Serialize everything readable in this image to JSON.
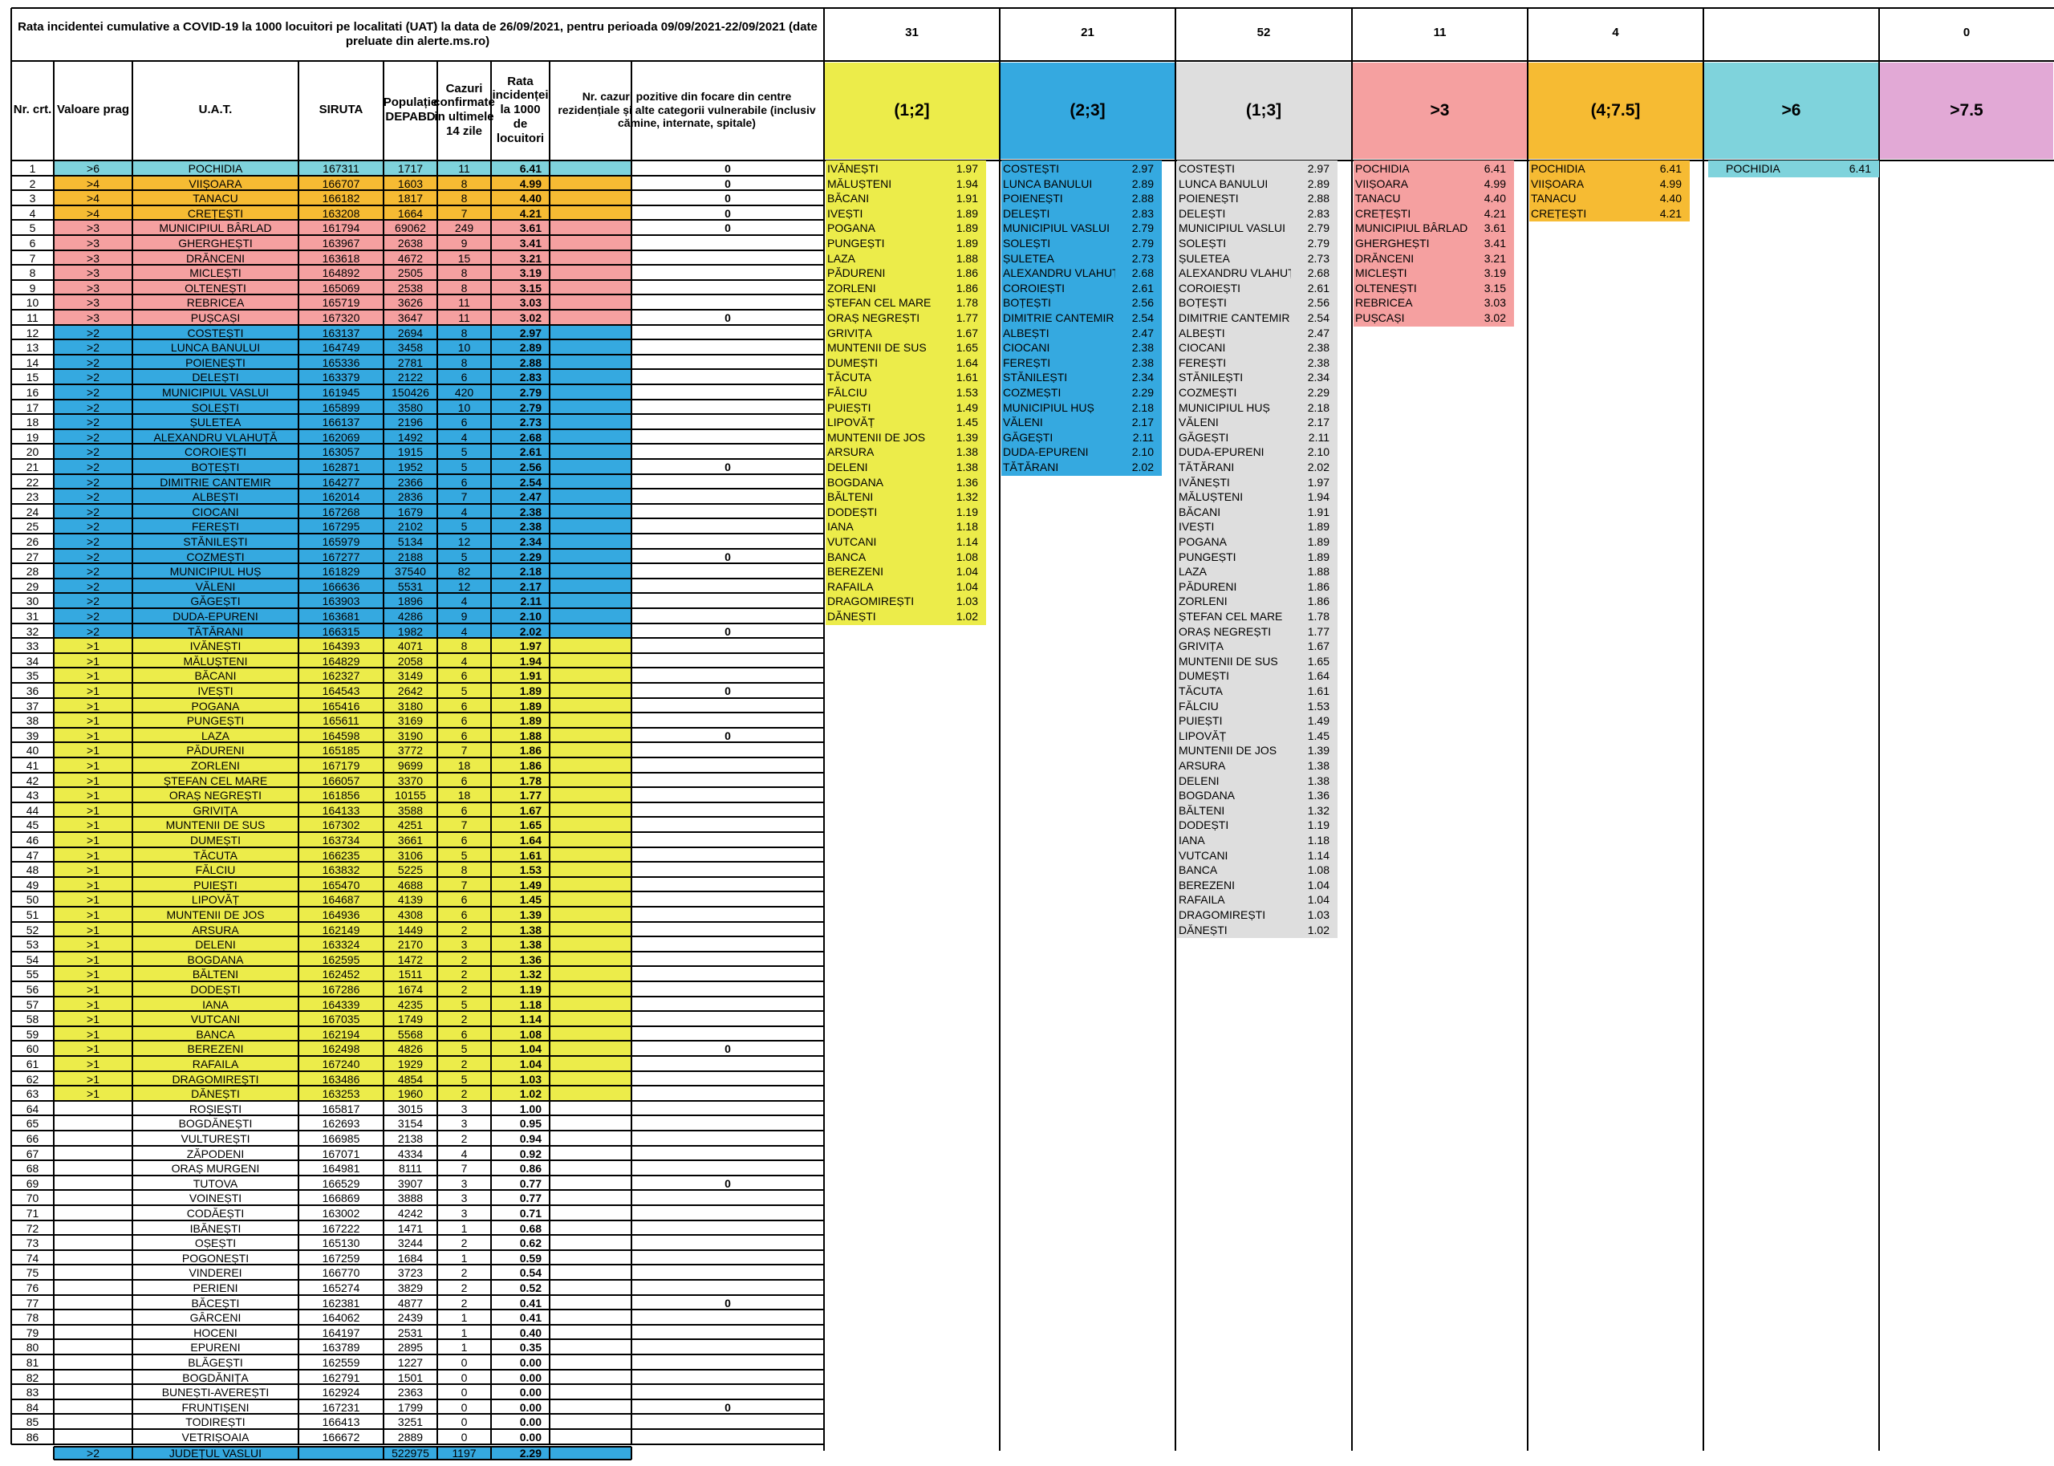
{
  "colors": {
    "c6": "#7fd3dc",
    "c4": "#f6bb33",
    "c3": "#f5a0a0",
    "c2": "#35a9e0",
    "c1": "#ecec4a",
    "c13": "#dedede",
    "c75": "#e2a9d6"
  },
  "header": {
    "title": "Rata incidentei cumulative a COVID-19 la 1000 locuitori pe localitati (UAT) la data de 26/09/2021, pentru perioada 09/09/2021-22/09/2021 (date preluate din alerte.ms.ro)",
    "col_nr": "Nr. crt.",
    "col_prag": "Valoare prag",
    "col_uat": "U.A.T.",
    "col_siruta": "SIRUTA",
    "col_pop": "Populație DEPABD",
    "col_cazuri": "Cazuri confirmate in ultimele 14 zile",
    "col_rata": "Rata incidenței la 1000 de locuitori",
    "col_focare": "Nr. cazuri pozitive din focare din centre rezidențiale și alte categorii vulnerabile (inclusiv cămine, internate, spitale)"
  },
  "rows": [
    [
      "1",
      ">6",
      "POCHIDIA",
      "167311",
      "1717",
      "11",
      "6.41",
      "0"
    ],
    [
      "2",
      ">4",
      "VIIȘOARA",
      "166707",
      "1603",
      "8",
      "4.99",
      "0"
    ],
    [
      "3",
      ">4",
      "TANACU",
      "166182",
      "1817",
      "8",
      "4.40",
      "0"
    ],
    [
      "4",
      ">4",
      "CREȚEȘTI",
      "163208",
      "1664",
      "7",
      "4.21",
      "0"
    ],
    [
      "5",
      ">3",
      "MUNICIPIUL BÂRLAD",
      "161794",
      "69062",
      "249",
      "3.61",
      "0"
    ],
    [
      "6",
      ">3",
      "GHERGHEȘTI",
      "163967",
      "2638",
      "9",
      "3.41",
      ""
    ],
    [
      "7",
      ">3",
      "DRĂNCENI",
      "163618",
      "4672",
      "15",
      "3.21",
      ""
    ],
    [
      "8",
      ">3",
      "MICLEȘTI",
      "164892",
      "2505",
      "8",
      "3.19",
      ""
    ],
    [
      "9",
      ">3",
      "OLTENEȘTI",
      "165069",
      "2538",
      "8",
      "3.15",
      ""
    ],
    [
      "10",
      ">3",
      "REBRICEA",
      "165719",
      "3626",
      "11",
      "3.03",
      ""
    ],
    [
      "11",
      ">3",
      "PUȘCAȘI",
      "167320",
      "3647",
      "11",
      "3.02",
      "0"
    ],
    [
      "12",
      ">2",
      "COSTEȘTI",
      "163137",
      "2694",
      "8",
      "2.97",
      ""
    ],
    [
      "13",
      ">2",
      "LUNCA BANULUI",
      "164749",
      "3458",
      "10",
      "2.89",
      ""
    ],
    [
      "14",
      ">2",
      "POIENEȘTI",
      "165336",
      "2781",
      "8",
      "2.88",
      ""
    ],
    [
      "15",
      ">2",
      "DELEȘTI",
      "163379",
      "2122",
      "6",
      "2.83",
      ""
    ],
    [
      "16",
      ">2",
      "MUNICIPIUL VASLUI",
      "161945",
      "150426",
      "420",
      "2.79",
      ""
    ],
    [
      "17",
      ">2",
      "SOLEȘTI",
      "165899",
      "3580",
      "10",
      "2.79",
      ""
    ],
    [
      "18",
      ">2",
      "ȘULETEA",
      "166137",
      "2196",
      "6",
      "2.73",
      ""
    ],
    [
      "19",
      ">2",
      "ALEXANDRU VLAHUȚĂ",
      "162069",
      "1492",
      "4",
      "2.68",
      ""
    ],
    [
      "20",
      ">2",
      "COROIEȘTI",
      "163057",
      "1915",
      "5",
      "2.61",
      ""
    ],
    [
      "21",
      ">2",
      "BOȚEȘTI",
      "162871",
      "1952",
      "5",
      "2.56",
      "0"
    ],
    [
      "22",
      ">2",
      "DIMITRIE CANTEMIR",
      "164277",
      "2366",
      "6",
      "2.54",
      ""
    ],
    [
      "23",
      ">2",
      "ALBEȘTI",
      "162014",
      "2836",
      "7",
      "2.47",
      ""
    ],
    [
      "24",
      ">2",
      "CIOCANI",
      "167268",
      "1679",
      "4",
      "2.38",
      ""
    ],
    [
      "25",
      ">2",
      "FEREȘTI",
      "167295",
      "2102",
      "5",
      "2.38",
      ""
    ],
    [
      "26",
      ">2",
      "STĂNILEȘTI",
      "165979",
      "5134",
      "12",
      "2.34",
      ""
    ],
    [
      "27",
      ">2",
      "COZMEȘTI",
      "167277",
      "2188",
      "5",
      "2.29",
      "0"
    ],
    [
      "28",
      ">2",
      "MUNICIPIUL HUȘ",
      "161829",
      "37540",
      "82",
      "2.18",
      ""
    ],
    [
      "29",
      ">2",
      "VĂLENI",
      "166636",
      "5531",
      "12",
      "2.17",
      ""
    ],
    [
      "30",
      ">2",
      "GĂGEȘTI",
      "163903",
      "1896",
      "4",
      "2.11",
      ""
    ],
    [
      "31",
      ">2",
      "DUDA-EPURENI",
      "163681",
      "4286",
      "9",
      "2.10",
      ""
    ],
    [
      "32",
      ">2",
      "TĂTĂRANI",
      "166315",
      "1982",
      "4",
      "2.02",
      "0"
    ],
    [
      "33",
      ">1",
      "IVĂNEȘTI",
      "164393",
      "4071",
      "8",
      "1.97",
      ""
    ],
    [
      "34",
      ">1",
      "MĂLUȘTENI",
      "164829",
      "2058",
      "4",
      "1.94",
      ""
    ],
    [
      "35",
      ">1",
      "BĂCANI",
      "162327",
      "3149",
      "6",
      "1.91",
      ""
    ],
    [
      "36",
      ">1",
      "IVEȘTI",
      "164543",
      "2642",
      "5",
      "1.89",
      "0"
    ],
    [
      "37",
      ">1",
      "POGANA",
      "165416",
      "3180",
      "6",
      "1.89",
      ""
    ],
    [
      "38",
      ">1",
      "PUNGEȘTI",
      "165611",
      "3169",
      "6",
      "1.89",
      ""
    ],
    [
      "39",
      ">1",
      "LAZA",
      "164598",
      "3190",
      "6",
      "1.88",
      "0"
    ],
    [
      "40",
      ">1",
      "PĂDURENI",
      "165185",
      "3772",
      "7",
      "1.86",
      ""
    ],
    [
      "41",
      ">1",
      "ZORLENI",
      "167179",
      "9699",
      "18",
      "1.86",
      ""
    ],
    [
      "42",
      ">1",
      "ȘTEFAN CEL MARE",
      "166057",
      "3370",
      "6",
      "1.78",
      ""
    ],
    [
      "43",
      ">1",
      "ORAȘ NEGREȘTI",
      "161856",
      "10155",
      "18",
      "1.77",
      ""
    ],
    [
      "44",
      ">1",
      "GRIVIȚA",
      "164133",
      "3588",
      "6",
      "1.67",
      ""
    ],
    [
      "45",
      ">1",
      "MUNTENII DE SUS",
      "167302",
      "4251",
      "7",
      "1.65",
      ""
    ],
    [
      "46",
      ">1",
      "DUMEȘTI",
      "163734",
      "3661",
      "6",
      "1.64",
      ""
    ],
    [
      "47",
      ">1",
      "TĂCUTA",
      "166235",
      "3106",
      "5",
      "1.61",
      ""
    ],
    [
      "48",
      ">1",
      "FĂLCIU",
      "163832",
      "5225",
      "8",
      "1.53",
      ""
    ],
    [
      "49",
      ">1",
      "PUIEȘTI",
      "165470",
      "4688",
      "7",
      "1.49",
      ""
    ],
    [
      "50",
      ">1",
      "LIPOVĂȚ",
      "164687",
      "4139",
      "6",
      "1.45",
      ""
    ],
    [
      "51",
      ">1",
      "MUNTENII DE JOS",
      "164936",
      "4308",
      "6",
      "1.39",
      ""
    ],
    [
      "52",
      ">1",
      "ARSURA",
      "162149",
      "1449",
      "2",
      "1.38",
      ""
    ],
    [
      "53",
      ">1",
      "DELENI",
      "163324",
      "2170",
      "3",
      "1.38",
      ""
    ],
    [
      "54",
      ">1",
      "BOGDANA",
      "162595",
      "1472",
      "2",
      "1.36",
      ""
    ],
    [
      "55",
      ">1",
      "BĂLTENI",
      "162452",
      "1511",
      "2",
      "1.32",
      ""
    ],
    [
      "56",
      ">1",
      "DODEȘTI",
      "167286",
      "1674",
      "2",
      "1.19",
      ""
    ],
    [
      "57",
      ">1",
      "IANA",
      "164339",
      "4235",
      "5",
      "1.18",
      ""
    ],
    [
      "58",
      ">1",
      "VUTCANI",
      "167035",
      "1749",
      "2",
      "1.14",
      ""
    ],
    [
      "59",
      ">1",
      "BANCA",
      "162194",
      "5568",
      "6",
      "1.08",
      ""
    ],
    [
      "60",
      ">1",
      "BEREZENI",
      "162498",
      "4826",
      "5",
      "1.04",
      "0"
    ],
    [
      "61",
      ">1",
      "RAFAILA",
      "167240",
      "1929",
      "2",
      "1.04",
      ""
    ],
    [
      "62",
      ">1",
      "DRAGOMIREȘTI",
      "163486",
      "4854",
      "5",
      "1.03",
      ""
    ],
    [
      "63",
      ">1",
      "DĂNEȘTI",
      "163253",
      "1960",
      "2",
      "1.02",
      ""
    ],
    [
      "64",
      "",
      "ROȘIEȘTI",
      "165817",
      "3015",
      "3",
      "1.00",
      ""
    ],
    [
      "65",
      "",
      "BOGDĂNEȘTI",
      "162693",
      "3154",
      "3",
      "0.95",
      ""
    ],
    [
      "66",
      "",
      "VULTUREȘTI",
      "166985",
      "2138",
      "2",
      "0.94",
      ""
    ],
    [
      "67",
      "",
      "ZĂPODENI",
      "167071",
      "4334",
      "4",
      "0.92",
      ""
    ],
    [
      "68",
      "",
      "ORAȘ MURGENI",
      "164981",
      "8111",
      "7",
      "0.86",
      ""
    ],
    [
      "69",
      "",
      "TUTOVA",
      "166529",
      "3907",
      "3",
      "0.77",
      "0"
    ],
    [
      "70",
      "",
      "VOINEȘTI",
      "166869",
      "3888",
      "3",
      "0.77",
      ""
    ],
    [
      "71",
      "",
      "CODĂEȘTI",
      "163002",
      "4242",
      "3",
      "0.71",
      ""
    ],
    [
      "72",
      "",
      "IBĂNEȘTI",
      "167222",
      "1471",
      "1",
      "0.68",
      ""
    ],
    [
      "73",
      "",
      "OȘEȘTI",
      "165130",
      "3244",
      "2",
      "0.62",
      ""
    ],
    [
      "74",
      "",
      "POGONEȘTI",
      "167259",
      "1684",
      "1",
      "0.59",
      ""
    ],
    [
      "75",
      "",
      "VINDEREI",
      "166770",
      "3723",
      "2",
      "0.54",
      ""
    ],
    [
      "76",
      "",
      "PERIENI",
      "165274",
      "3829",
      "2",
      "0.52",
      ""
    ],
    [
      "77",
      "",
      "BĂCEȘTI",
      "162381",
      "4877",
      "2",
      "0.41",
      "0"
    ],
    [
      "78",
      "",
      "GÂRCENI",
      "164062",
      "2439",
      "1",
      "0.41",
      ""
    ],
    [
      "79",
      "",
      "HOCENI",
      "164197",
      "2531",
      "1",
      "0.40",
      ""
    ],
    [
      "80",
      "",
      "EPURENI",
      "163789",
      "2895",
      "1",
      "0.35",
      ""
    ],
    [
      "81",
      "",
      "BLĂGEȘTI",
      "162559",
      "1227",
      "0",
      "0.00",
      ""
    ],
    [
      "82",
      "",
      "BOGDĂNIȚA",
      "162791",
      "1501",
      "0",
      "0.00",
      ""
    ],
    [
      "83",
      "",
      "BUNEȘTI-AVEREȘTI",
      "162924",
      "2363",
      "0",
      "0.00",
      ""
    ],
    [
      "84",
      "",
      "FRUNTIȘENI",
      "167231",
      "1799",
      "0",
      "0.00",
      "0"
    ],
    [
      "85",
      "",
      "TODIREȘTI",
      "166413",
      "3251",
      "0",
      "0.00",
      ""
    ],
    [
      "86",
      "",
      "VETRIȘOAIA",
      "166672",
      "2889",
      "0",
      "0.00",
      ""
    ]
  ],
  "total": {
    "prag": ">2",
    "uat": "JUDEȚUL VASLUI",
    "pop": "522975",
    "cazuri": "1197",
    "rata": "2.29"
  },
  "groups": [
    {
      "count": "31",
      "range": "(1;2]",
      "color": "c1",
      "items": [
        [
          "IVĂNEȘTI",
          "1.97"
        ],
        [
          "MĂLUȘTENI",
          "1.94"
        ],
        [
          "BĂCANI",
          "1.91"
        ],
        [
          "IVEȘTI",
          "1.89"
        ],
        [
          "POGANA",
          "1.89"
        ],
        [
          "PUNGEȘTI",
          "1.89"
        ],
        [
          "LAZA",
          "1.88"
        ],
        [
          "PĂDURENI",
          "1.86"
        ],
        [
          "ZORLENI",
          "1.86"
        ],
        [
          "ȘTEFAN CEL MARE",
          "1.78"
        ],
        [
          "ORAȘ NEGREȘTI",
          "1.77"
        ],
        [
          "GRIVIȚA",
          "1.67"
        ],
        [
          "MUNTENII DE SUS",
          "1.65"
        ],
        [
          "DUMEȘTI",
          "1.64"
        ],
        [
          "TĂCUTA",
          "1.61"
        ],
        [
          "FĂLCIU",
          "1.53"
        ],
        [
          "PUIEȘTI",
          "1.49"
        ],
        [
          "LIPOVĂȚ",
          "1.45"
        ],
        [
          "MUNTENII DE JOS",
          "1.39"
        ],
        [
          "ARSURA",
          "1.38"
        ],
        [
          "DELENI",
          "1.38"
        ],
        [
          "BOGDANA",
          "1.36"
        ],
        [
          "BĂLTENI",
          "1.32"
        ],
        [
          "DODEȘTI",
          "1.19"
        ],
        [
          "IANA",
          "1.18"
        ],
        [
          "VUTCANI",
          "1.14"
        ],
        [
          "BANCA",
          "1.08"
        ],
        [
          "BEREZENI",
          "1.04"
        ],
        [
          "RAFAILA",
          "1.04"
        ],
        [
          "DRAGOMIREȘTI",
          "1.03"
        ],
        [
          "DĂNEȘTI",
          "1.02"
        ]
      ]
    },
    {
      "count": "21",
      "range": "(2;3]",
      "color": "c2",
      "items": [
        [
          "COSTEȘTI",
          "2.97"
        ],
        [
          "LUNCA BANULUI",
          "2.89"
        ],
        [
          "POIENEȘTI",
          "2.88"
        ],
        [
          "DELEȘTI",
          "2.83"
        ],
        [
          "MUNICIPIUL VASLUI",
          "2.79"
        ],
        [
          "SOLEȘTI",
          "2.79"
        ],
        [
          "ȘULETEA",
          "2.73"
        ],
        [
          "ALEXANDRU VLAHUȚĂ",
          "2.68"
        ],
        [
          "COROIEȘTI",
          "2.61"
        ],
        [
          "BOȚEȘTI",
          "2.56"
        ],
        [
          "DIMITRIE CANTEMIR",
          "2.54"
        ],
        [
          "ALBEȘTI",
          "2.47"
        ],
        [
          "CIOCANI",
          "2.38"
        ],
        [
          "FEREȘTI",
          "2.38"
        ],
        [
          "STĂNILEȘTI",
          "2.34"
        ],
        [
          "COZMEȘTI",
          "2.29"
        ],
        [
          "MUNICIPIUL HUȘ",
          "2.18"
        ],
        [
          "VĂLENI",
          "2.17"
        ],
        [
          "GĂGEȘTI",
          "2.11"
        ],
        [
          "DUDA-EPURENI",
          "2.10"
        ],
        [
          "TĂTĂRANI",
          "2.02"
        ]
      ]
    },
    {
      "count": "52",
      "range": "(1;3]",
      "color": "c13",
      "items": [
        [
          "COSTEȘTI",
          "2.97"
        ],
        [
          "LUNCA BANULUI",
          "2.89"
        ],
        [
          "POIENEȘTI",
          "2.88"
        ],
        [
          "DELEȘTI",
          "2.83"
        ],
        [
          "MUNICIPIUL VASLUI",
          "2.79"
        ],
        [
          "SOLEȘTI",
          "2.79"
        ],
        [
          "ȘULETEA",
          "2.73"
        ],
        [
          "ALEXANDRU VLAHUȚĂ",
          "2.68"
        ],
        [
          "COROIEȘTI",
          "2.61"
        ],
        [
          "BOȚEȘTI",
          "2.56"
        ],
        [
          "DIMITRIE CANTEMIR",
          "2.54"
        ],
        [
          "ALBEȘTI",
          "2.47"
        ],
        [
          "CIOCANI",
          "2.38"
        ],
        [
          "FEREȘTI",
          "2.38"
        ],
        [
          "STĂNILEȘTI",
          "2.34"
        ],
        [
          "COZMEȘTI",
          "2.29"
        ],
        [
          "MUNICIPIUL HUȘ",
          "2.18"
        ],
        [
          "VĂLENI",
          "2.17"
        ],
        [
          "GĂGEȘTI",
          "2.11"
        ],
        [
          "DUDA-EPURENI",
          "2.10"
        ],
        [
          "TĂTĂRANI",
          "2.02"
        ],
        [
          "IVĂNEȘTI",
          "1.97"
        ],
        [
          "MĂLUȘTENI",
          "1.94"
        ],
        [
          "BĂCANI",
          "1.91"
        ],
        [
          "IVEȘTI",
          "1.89"
        ],
        [
          "POGANA",
          "1.89"
        ],
        [
          "PUNGEȘTI",
          "1.89"
        ],
        [
          "LAZA",
          "1.88"
        ],
        [
          "PĂDURENI",
          "1.86"
        ],
        [
          "ZORLENI",
          "1.86"
        ],
        [
          "ȘTEFAN CEL MARE",
          "1.78"
        ],
        [
          "ORAȘ NEGREȘTI",
          "1.77"
        ],
        [
          "GRIVIȚA",
          "1.67"
        ],
        [
          "MUNTENII DE SUS",
          "1.65"
        ],
        [
          "DUMEȘTI",
          "1.64"
        ],
        [
          "TĂCUTA",
          "1.61"
        ],
        [
          "FĂLCIU",
          "1.53"
        ],
        [
          "PUIEȘTI",
          "1.49"
        ],
        [
          "LIPOVĂȚ",
          "1.45"
        ],
        [
          "MUNTENII DE JOS",
          "1.39"
        ],
        [
          "ARSURA",
          "1.38"
        ],
        [
          "DELENI",
          "1.38"
        ],
        [
          "BOGDANA",
          "1.36"
        ],
        [
          "BĂLTENI",
          "1.32"
        ],
        [
          "DODEȘTI",
          "1.19"
        ],
        [
          "IANA",
          "1.18"
        ],
        [
          "VUTCANI",
          "1.14"
        ],
        [
          "BANCA",
          "1.08"
        ],
        [
          "BEREZENI",
          "1.04"
        ],
        [
          "RAFAILA",
          "1.04"
        ],
        [
          "DRAGOMIREȘTI",
          "1.03"
        ],
        [
          "DĂNEȘTI",
          "1.02"
        ]
      ]
    },
    {
      "count": "11",
      "range": ">3",
      "color": "c3",
      "items": [
        [
          "POCHIDIA",
          "6.41"
        ],
        [
          "VIIȘOARA",
          "4.99"
        ],
        [
          "TANACU",
          "4.40"
        ],
        [
          "CREȚEȘTI",
          "4.21"
        ],
        [
          "MUNICIPIUL BÂRLAD",
          "3.61"
        ],
        [
          "GHERGHEȘTI",
          "3.41"
        ],
        [
          "DRĂNCENI",
          "3.21"
        ],
        [
          "MICLEȘTI",
          "3.19"
        ],
        [
          "OLTENEȘTI",
          "3.15"
        ],
        [
          "REBRICEA",
          "3.03"
        ],
        [
          "PUȘCAȘI",
          "3.02"
        ]
      ]
    },
    {
      "count": "4",
      "range": "(4;7.5]",
      "color": "c4",
      "items": [
        [
          "POCHIDIA",
          "6.41"
        ],
        [
          "VIIȘOARA",
          "4.99"
        ],
        [
          "TANACU",
          "4.40"
        ],
        [
          "CREȚEȘTI",
          "4.21"
        ]
      ]
    },
    {
      "count": "",
      "range": ">6",
      "color": "c6",
      "items": [
        [
          "POCHIDIA",
          "6.41"
        ]
      ]
    },
    {
      "count": "0",
      "range": ">7.5",
      "color": "c75",
      "items": []
    }
  ]
}
